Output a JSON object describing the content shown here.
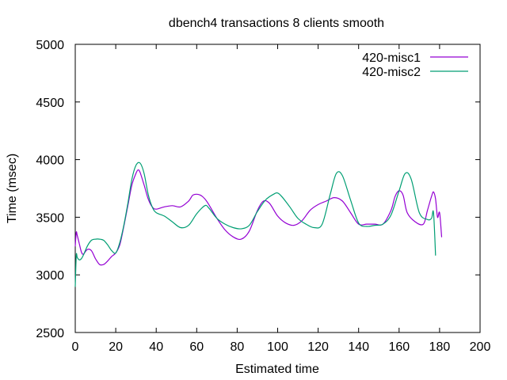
{
  "chart_data": {
    "type": "line",
    "title": "dbench4 transactions 8 clients smooth",
    "xlabel": "Estimated time",
    "ylabel": "Time (msec)",
    "xlim": [
      0,
      200
    ],
    "ylim": [
      2500,
      5000
    ],
    "xticks": [
      0,
      20,
      40,
      60,
      80,
      100,
      120,
      140,
      160,
      180,
      200
    ],
    "yticks": [
      2500,
      3000,
      3500,
      4000,
      4500,
      5000
    ],
    "grid": false,
    "legend_position": "top-right",
    "series": [
      {
        "name": "420-misc1",
        "color": "#9400d3",
        "x": [
          0,
          0.5,
          1,
          2,
          3,
          4,
          6,
          8,
          10,
          12,
          14,
          16,
          18,
          20,
          22,
          24,
          26,
          28,
          30,
          31,
          32,
          34,
          36,
          38,
          40,
          44,
          48,
          52,
          56,
          58,
          60,
          62,
          64,
          66,
          70,
          74,
          78,
          82,
          86,
          90,
          93,
          96,
          100,
          104,
          108,
          112,
          116,
          120,
          124,
          128,
          132,
          136,
          140,
          144,
          148,
          152,
          156,
          158,
          160,
          162,
          164,
          168,
          172,
          174,
          176,
          177,
          178,
          179,
          180,
          181
        ],
        "y": [
          3250,
          3370,
          3340,
          3270,
          3200,
          3180,
          3220,
          3210,
          3140,
          3090,
          3090,
          3120,
          3160,
          3190,
          3260,
          3420,
          3600,
          3780,
          3880,
          3910,
          3890,
          3780,
          3660,
          3590,
          3570,
          3590,
          3600,
          3590,
          3640,
          3690,
          3700,
          3690,
          3660,
          3610,
          3490,
          3390,
          3330,
          3310,
          3380,
          3560,
          3640,
          3620,
          3510,
          3450,
          3430,
          3470,
          3560,
          3610,
          3640,
          3670,
          3640,
          3540,
          3440,
          3440,
          3440,
          3440,
          3560,
          3680,
          3730,
          3690,
          3540,
          3460,
          3440,
          3560,
          3680,
          3720,
          3660,
          3500,
          3540,
          3330
        ]
      },
      {
        "name": "420-misc2",
        "color": "#009e73",
        "x": [
          0,
          0.5,
          1,
          2,
          3,
          4,
          6,
          8,
          10,
          12,
          14,
          16,
          18,
          20,
          22,
          24,
          26,
          28,
          30,
          32,
          34,
          36,
          38,
          40,
          44,
          48,
          52,
          56,
          60,
          64,
          66,
          70,
          74,
          78,
          82,
          86,
          90,
          94,
          98,
          100,
          102,
          106,
          110,
          114,
          118,
          122,
          126,
          129,
          132,
          136,
          140,
          144,
          148,
          152,
          156,
          160,
          163,
          166,
          170,
          174,
          176,
          177,
          178
        ],
        "y": [
          2900,
          3170,
          3150,
          3130,
          3140,
          3170,
          3250,
          3300,
          3310,
          3310,
          3300,
          3260,
          3210,
          3190,
          3280,
          3430,
          3620,
          3830,
          3950,
          3970,
          3880,
          3700,
          3590,
          3540,
          3510,
          3460,
          3410,
          3430,
          3530,
          3600,
          3580,
          3490,
          3440,
          3410,
          3400,
          3430,
          3550,
          3650,
          3700,
          3710,
          3680,
          3590,
          3490,
          3440,
          3410,
          3440,
          3700,
          3880,
          3860,
          3650,
          3450,
          3420,
          3430,
          3440,
          3520,
          3730,
          3880,
          3830,
          3540,
          3480,
          3490,
          3540,
          3170
        ]
      }
    ]
  }
}
